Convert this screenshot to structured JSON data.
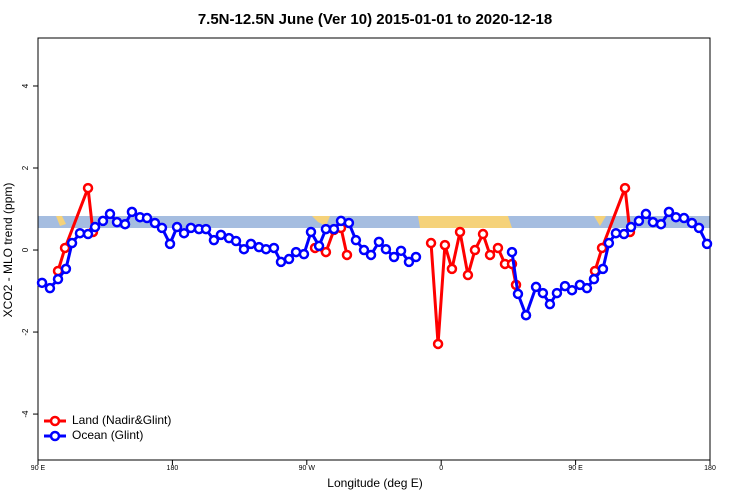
{
  "chart_data": {
    "type": "line",
    "title": "7.5N-12.5N June (Ver 10)   2015-01-01 to 2020-12-18",
    "xlabel": "Longitude (deg E)",
    "ylabel": "XCO2 - MLO trend (ppm)",
    "xlim": [
      90,
      540
    ],
    "xticks": [
      {
        "value": 90,
        "label": "90 E"
      },
      {
        "value": 180,
        "label": "180"
      },
      {
        "value": 270,
        "label": "90 W"
      },
      {
        "value": 360,
        "label": "0"
      },
      {
        "value": 450,
        "label": "90 E"
      },
      {
        "value": 540,
        "label": "180"
      }
    ],
    "ylim": [
      -5.12,
      5.17
    ],
    "yticks": [
      -4,
      -2,
      0,
      2,
      4
    ],
    "legend": "bottom-left",
    "series": [
      {
        "name": "Land (Nadir&Glint)",
        "color": "#ff0000",
        "x": [
          103.4,
          108.1,
          123.5,
          126.8,
          null,
          275.5,
          282.8,
          288.2,
          292.9,
          296.9,
          null,
          353.2,
          357.9,
          362.5,
          367.2,
          372.6,
          377.9,
          382.6,
          388.0,
          392.7,
          398.0,
          402.7,
          407.4,
          410.1,
          null,
          463.0,
          467.7,
          483.1,
          486.4
        ],
        "values": [
          -0.51,
          0.05,
          1.51,
          0.44,
          null,
          0.05,
          -0.05,
          0.49,
          0.54,
          -0.12,
          null,
          0.17,
          -2.29,
          0.12,
          -0.46,
          0.44,
          -0.61,
          0,
          0.39,
          -0.12,
          0.05,
          -0.34,
          -0.34,
          -0.85,
          null,
          -0.51,
          0.05,
          1.51,
          0.44
        ]
      },
      {
        "name": "Ocean (Glint)",
        "color": "#0000ff",
        "x": [
          92.7,
          98.0,
          103.4,
          108.7,
          112.8,
          118.1,
          123.5,
          128.2,
          133.5,
          138.2,
          142.9,
          148.3,
          152.9,
          158.3,
          163.0,
          168.3,
          173.0,
          178.4,
          183.1,
          187.8,
          192.4,
          197.8,
          202.5,
          207.8,
          212.5,
          217.9,
          222.6,
          227.9,
          232.6,
          238.0,
          242.7,
          248.0,
          252.7,
          258.1,
          262.8,
          268.1,
          272.8,
          278.2,
          282.8,
          288.2,
          292.9,
          298.2,
          302.9,
          308.3,
          313.0,
          318.3,
          323.0,
          328.4,
          333.1,
          338.4,
          343.1,
          null,
          407.4,
          411.4,
          416.8,
          423.5,
          428.1,
          432.8,
          437.5,
          442.9,
          447.6,
          452.9,
          457.6,
          462.3,
          468.3,
          472.3,
          477.0,
          482.4,
          487.1,
          492.4,
          497.1,
          501.8,
          507.2,
          512.5,
          517.2,
          522.6,
          527.9,
          532.6,
          538.0
        ],
        "values": [
          -0.8,
          -0.93,
          -0.71,
          -0.46,
          0.17,
          0.41,
          0.39,
          0.56,
          0.71,
          0.88,
          0.68,
          0.63,
          0.93,
          0.8,
          0.78,
          0.66,
          0.54,
          0.15,
          0.56,
          0.41,
          0.54,
          0.51,
          0.51,
          0.24,
          0.37,
          0.29,
          0.22,
          0.02,
          0.15,
          0.07,
          0.02,
          0.05,
          -0.29,
          -0.22,
          -0.05,
          -0.1,
          0.44,
          0.1,
          0.51,
          0.51,
          0.71,
          0.66,
          0.24,
          0,
          -0.12,
          0.2,
          0.02,
          -0.17,
          -0.02,
          -0.29,
          -0.17,
          null,
          -0.05,
          -1.07,
          -1.59,
          -0.9,
          -1.05,
          -1.32,
          -1.05,
          -0.88,
          -0.98,
          -0.85,
          -0.93,
          -0.71,
          -0.46,
          0.17,
          0.41,
          0.39,
          0.56,
          0.71,
          0.88,
          0.68,
          0.63,
          0.93,
          0.8,
          0.78,
          0.66,
          0.54,
          0.15
        ]
      }
    ]
  }
}
